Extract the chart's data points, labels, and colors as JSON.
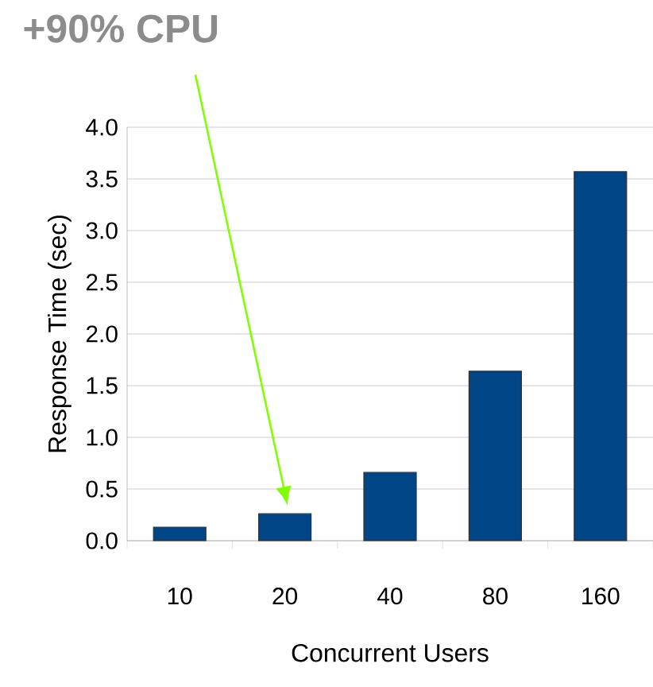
{
  "chart_data": {
    "type": "bar",
    "categories": [
      "10",
      "20",
      "40",
      "80",
      "160"
    ],
    "values": [
      0.13,
      0.26,
      0.66,
      1.64,
      3.57
    ],
    "color": "#004586",
    "xlabel": "Concurrent Users",
    "ylabel": "Response Time (sec)",
    "ylim": [
      0,
      4.0
    ],
    "yticks": [
      {
        "value": 0,
        "label": "0.0"
      },
      {
        "value": 0.5,
        "label": "0.5"
      },
      {
        "value": 1,
        "label": "1.0"
      },
      {
        "value": 1.5,
        "label": "1.5"
      },
      {
        "value": 2,
        "label": "2.0"
      },
      {
        "value": 2.5,
        "label": "2.5"
      },
      {
        "value": 3,
        "label": "3.0"
      },
      {
        "value": 3.5,
        "label": "3.5"
      },
      {
        "value": 4,
        "label": "4.0"
      }
    ],
    "grid": "y",
    "annotations": [
      "+90% CPU"
    ]
  }
}
